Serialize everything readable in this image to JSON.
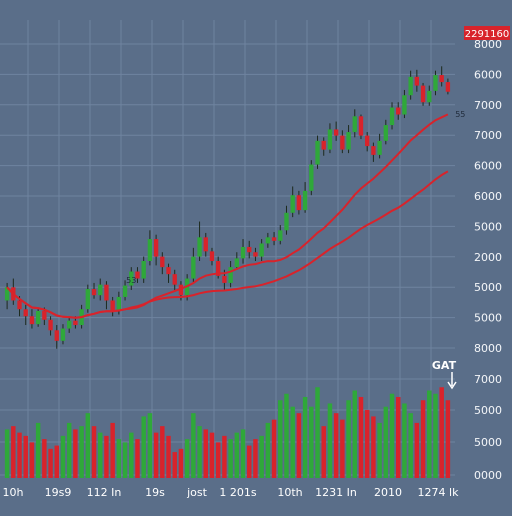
{
  "chart_data": {
    "type": "candlestick",
    "background": "#5a6e89",
    "grid": true,
    "colors": {
      "up": "#2fa83a",
      "down": "#d8232b",
      "ma": "#d8232b",
      "grid": "#6f84a0",
      "text": "#f4f6f9",
      "badge": "#d8232b"
    },
    "price_badge": "2291160",
    "price_axis_labels": [
      "8000",
      "6000",
      "7000",
      "7000",
      "6000",
      "6000",
      "5000",
      "2000",
      "5000",
      "5000",
      "8000"
    ],
    "volume_axis_labels": [
      "7000",
      "5000",
      "5000",
      "0000"
    ],
    "annotations": [
      {
        "text": "53",
        "x": 20,
        "y": 4810
      },
      {
        "text": "55",
        "x": 73,
        "y": 6700
      }
    ],
    "callout": {
      "text": "GAT"
    },
    "x_tick_labels": [
      "10h",
      "19s9",
      "112 In",
      "19s",
      "jost",
      "1 201s",
      "10th",
      "1231 In",
      "2010",
      "1274 lk"
    ],
    "candles": [
      [
        4700,
        4850,
        4600,
        4900
      ],
      [
        4850,
        4700,
        4650,
        4950
      ],
      [
        4700,
        4600,
        4520,
        4750
      ],
      [
        4600,
        4520,
        4420,
        4650
      ],
      [
        4520,
        4430,
        4380,
        4600
      ],
      [
        4430,
        4580,
        4400,
        4620
      ],
      [
        4580,
        4480,
        4420,
        4620
      ],
      [
        4480,
        4360,
        4300,
        4520
      ],
      [
        4360,
        4240,
        4150,
        4420
      ],
      [
        4240,
        4380,
        4200,
        4430
      ],
      [
        4380,
        4470,
        4330,
        4520
      ],
      [
        4470,
        4420,
        4380,
        4520
      ],
      [
        4420,
        4600,
        4380,
        4650
      ],
      [
        4600,
        4830,
        4560,
        4880
      ],
      [
        4830,
        4760,
        4720,
        4900
      ],
      [
        4760,
        4880,
        4700,
        4950
      ],
      [
        4880,
        4700,
        4600,
        4920
      ],
      [
        4700,
        4580,
        4520,
        4740
      ],
      [
        4580,
        4740,
        4540,
        4800
      ],
      [
        4740,
        4870,
        4700,
        4930
      ],
      [
        4870,
        5030,
        4820,
        5080
      ],
      [
        5030,
        4950,
        4900,
        5080
      ],
      [
        4950,
        5150,
        4900,
        5200
      ],
      [
        5150,
        5400,
        5100,
        5500
      ],
      [
        5400,
        5200,
        5100,
        5450
      ],
      [
        5200,
        5080,
        5000,
        5250
      ],
      [
        5080,
        5000,
        4900,
        5120
      ],
      [
        5000,
        4880,
        4800,
        5050
      ],
      [
        4880,
        4760,
        4700,
        4920
      ],
      [
        4760,
        4950,
        4700,
        5000
      ],
      [
        4950,
        5200,
        4900,
        5300
      ],
      [
        5200,
        5420,
        5150,
        5600
      ],
      [
        5420,
        5260,
        5200,
        5470
      ],
      [
        5260,
        5150,
        5100,
        5300
      ],
      [
        5150,
        4980,
        4950,
        5200
      ],
      [
        4980,
        4900,
        4820,
        5050
      ],
      [
        4900,
        5080,
        4850,
        5150
      ],
      [
        5080,
        5180,
        5050,
        5250
      ],
      [
        5180,
        5310,
        5120,
        5400
      ],
      [
        5310,
        5250,
        5180,
        5380
      ],
      [
        5250,
        5200,
        5150,
        5300
      ],
      [
        5200,
        5350,
        5150,
        5400
      ],
      [
        5350,
        5420,
        5300,
        5470
      ],
      [
        5420,
        5380,
        5330,
        5480
      ],
      [
        5380,
        5500,
        5340,
        5560
      ],
      [
        5500,
        5700,
        5450,
        5780
      ],
      [
        5700,
        5900,
        5650,
        6000
      ],
      [
        5900,
        5730,
        5680,
        5950
      ],
      [
        5730,
        5950,
        5700,
        6050
      ],
      [
        5950,
        6250,
        5900,
        6300
      ],
      [
        6250,
        6520,
        6200,
        6580
      ],
      [
        6520,
        6420,
        6350,
        6560
      ],
      [
        6420,
        6650,
        6380,
        6720
      ],
      [
        6650,
        6580,
        6520,
        6740
      ],
      [
        6580,
        6420,
        6380,
        6640
      ],
      [
        6420,
        6620,
        6380,
        6700
      ],
      [
        6620,
        6800,
        6560,
        6880
      ],
      [
        6800,
        6580,
        6540,
        6820
      ],
      [
        6580,
        6460,
        6400,
        6620
      ],
      [
        6460,
        6360,
        6280,
        6500
      ],
      [
        6360,
        6520,
        6320,
        6600
      ],
      [
        6520,
        6700,
        6480,
        6760
      ],
      [
        6700,
        6900,
        6650,
        6960
      ],
      [
        6900,
        6820,
        6760,
        6960
      ],
      [
        6820,
        7040,
        6780,
        7100
      ],
      [
        7040,
        7250,
        6990,
        7320
      ],
      [
        7250,
        7150,
        7080,
        7330
      ],
      [
        7150,
        6960,
        6920,
        7180
      ],
      [
        6960,
        7090,
        6920,
        7150
      ],
      [
        7090,
        7270,
        7040,
        7320
      ],
      [
        7270,
        7190,
        7140,
        7370
      ],
      [
        7190,
        7080,
        7050,
        7230
      ]
    ],
    "moving_averages": [
      {
        "name": "",
        "period": 20
      },
      {
        "name": "",
        "period": 40
      }
    ],
    "volumes": [
      1500,
      1600,
      1400,
      1300,
      1100,
      1700,
      1200,
      900,
      1000,
      1300,
      1700,
      1500,
      1600,
      2000,
      1600,
      1400,
      1300,
      1700,
      1200,
      1100,
      1400,
      1200,
      1900,
      2000,
      1400,
      1600,
      1300,
      800,
      900,
      1200,
      2000,
      1600,
      1500,
      1400,
      1100,
      1300,
      1200,
      1400,
      1500,
      1000,
      1200,
      1300,
      1700,
      1800,
      2400,
      2600,
      2200,
      2000,
      2500,
      2200,
      2800,
      1600,
      2300,
      2000,
      1800,
      2400,
      2700,
      2500,
      2100,
      1900,
      1700,
      2200,
      2600,
      2500,
      2300,
      2000,
      1700,
      2400,
      2700,
      2600,
      2800,
      2400
    ]
  }
}
